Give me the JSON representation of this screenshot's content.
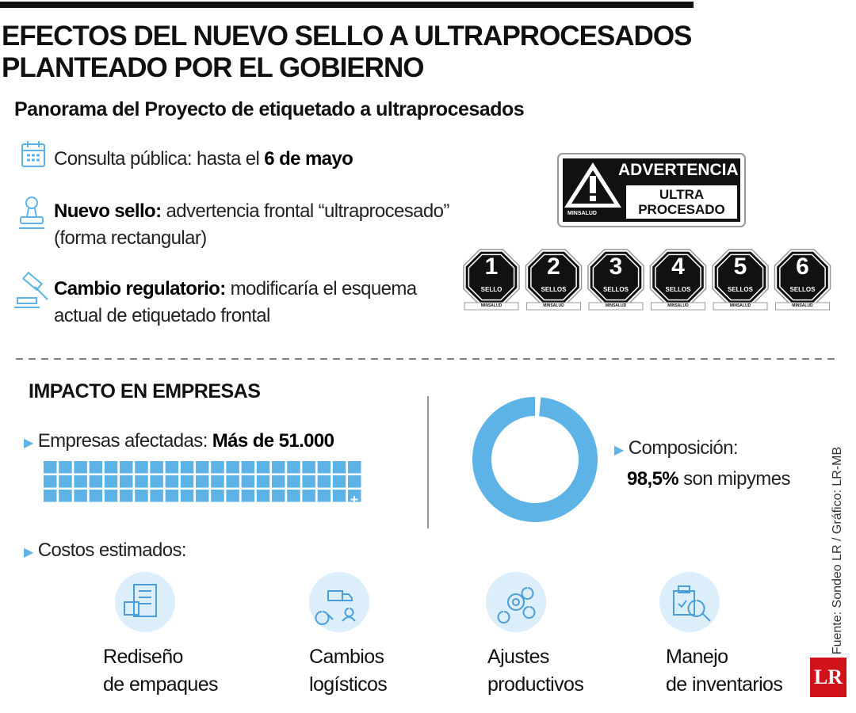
{
  "header": {
    "title_line1": "EFECTOS DEL NUEVO SELLO A ULTRAPROCESADOS",
    "title_line2": "PLANTEADO POR EL GOBIERNO",
    "subtitle": "Panorama del Proyecto de etiquetado a ultraprocesados"
  },
  "overview": [
    {
      "text": "Consulta pública: hasta el",
      "bold": "6 de mayo"
    },
    {
      "bold": "Nuevo sello:",
      "text": "advertencia frontal “ultraprocesado”",
      "text2": "(forma rectangular)"
    },
    {
      "bold": "Cambio regulatorio:",
      "text": "modificaría el esquema",
      "text2": "actual de etiquetado frontal"
    }
  ],
  "warning_seal": {
    "line1": "ADVERTENCIA",
    "line2": "ULTRA",
    "line3": "PROCESADO",
    "authority": "MINSALUD"
  },
  "seals": [
    {
      "number": "1",
      "label": "SELLO"
    },
    {
      "number": "2",
      "label": "SELLOS"
    },
    {
      "number": "3",
      "label": "SELLOS"
    },
    {
      "number": "4",
      "label": "SELLOS"
    },
    {
      "number": "5",
      "label": "SELLOS"
    },
    {
      "number": "6",
      "label": "SELLOS"
    }
  ],
  "impact": {
    "title": "IMPACTO EN EMPRESAS",
    "companies_label": "Empresas afectadas:",
    "companies_value": "Más de 51.000",
    "composition_label": "Composición:",
    "composition_value_label": "98,5%",
    "composition_value": 98.5,
    "composition_rest": "son mipymes"
  },
  "costs": {
    "title": "Costos estimados:",
    "items": [
      {
        "line1": "Rediseño",
        "line2": "de empaques"
      },
      {
        "line1": "Cambios",
        "line2": "logísticos"
      },
      {
        "line1": "Ajustes",
        "line2": "productivos"
      },
      {
        "line1": "Manejo",
        "line2": "de inventarios"
      }
    ]
  },
  "source": "Fuente: Sondeo LR / Gráfico: LR-MB",
  "logo": "LR"
}
